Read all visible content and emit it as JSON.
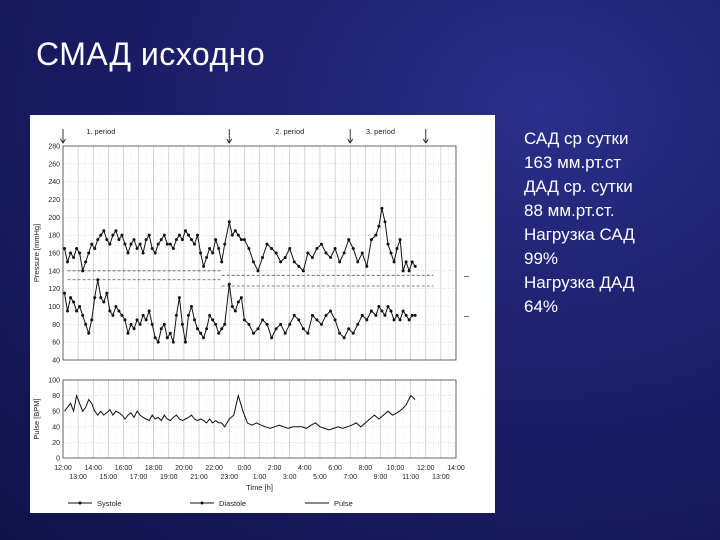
{
  "slide": {
    "title": "СМАД исходно"
  },
  "notes": [
    "САД ср сутки",
    "163 мм.рт.ст",
    "ДАД ср. сутки",
    "88 мм.рт.ст.",
    "Нагрузка САД",
    "99%",
    "Нагрузка ДАД",
    "64%"
  ],
  "chart_data": [
    {
      "type": "line",
      "ylabel": "Pressure [mmHg]",
      "ylim": [
        40,
        280
      ],
      "yticks": [
        40,
        60,
        80,
        100,
        120,
        140,
        160,
        180,
        200,
        220,
        240,
        260,
        280
      ],
      "xlim": [
        12,
        38
      ],
      "periods": [
        {
          "label": "1. period",
          "center": 14.5
        },
        {
          "label": "2. period",
          "center": 27.0
        },
        {
          "label": "3. period",
          "center": 33.0
        }
      ],
      "period_markers": [
        12.0,
        23.0,
        31.0,
        36.0
      ],
      "right_ticks": [
        {
          "y": 135,
          "label": "–"
        },
        {
          "y": 90,
          "label": "–"
        }
      ],
      "threshold_segments": [
        {
          "y": 140,
          "from": 12.3,
          "to": 22.5
        },
        {
          "y": 135,
          "from": 22.5,
          "to": 36.5
        },
        {
          "y": 130,
          "from": 12.3,
          "to": 22.5
        },
        {
          "y": 123,
          "from": 22.5,
          "to": 36.5
        }
      ],
      "series": [
        {
          "name": "Systole",
          "x": [
            12.1,
            12.3,
            12.5,
            12.7,
            12.9,
            13.1,
            13.3,
            13.5,
            13.7,
            13.9,
            14.1,
            14.3,
            14.5,
            14.7,
            14.9,
            15.1,
            15.3,
            15.5,
            15.7,
            15.9,
            16.1,
            16.3,
            16.5,
            16.7,
            16.9,
            17.1,
            17.3,
            17.5,
            17.7,
            17.9,
            18.1,
            18.3,
            18.5,
            18.7,
            18.9,
            19.1,
            19.3,
            19.5,
            19.7,
            19.9,
            20.1,
            20.3,
            20.5,
            20.7,
            20.9,
            21.1,
            21.3,
            21.5,
            21.7,
            21.9,
            22.1,
            22.3,
            22.5,
            22.7,
            23.0,
            23.2,
            23.4,
            23.6,
            23.8,
            24.0,
            24.3,
            24.6,
            24.9,
            25.2,
            25.5,
            25.8,
            26.1,
            26.4,
            26.7,
            27.0,
            27.3,
            27.6,
            27.9,
            28.2,
            28.5,
            28.8,
            29.1,
            29.4,
            29.7,
            30.0,
            30.3,
            30.6,
            30.9,
            31.2,
            31.5,
            31.8,
            32.1,
            32.4,
            32.7,
            32.9,
            33.1,
            33.3,
            33.5,
            33.7,
            33.9,
            34.1,
            34.3,
            34.5,
            34.7,
            34.9,
            35.1,
            35.3
          ],
          "y": [
            165,
            150,
            160,
            155,
            165,
            160,
            140,
            150,
            160,
            170,
            165,
            175,
            180,
            185,
            175,
            170,
            180,
            185,
            175,
            180,
            170,
            160,
            170,
            175,
            165,
            170,
            160,
            175,
            180,
            165,
            160,
            170,
            175,
            180,
            170,
            170,
            165,
            175,
            180,
            175,
            185,
            180,
            175,
            170,
            180,
            160,
            145,
            155,
            165,
            160,
            175,
            165,
            150,
            170,
            195,
            180,
            185,
            180,
            175,
            175,
            165,
            150,
            140,
            155,
            170,
            165,
            160,
            150,
            155,
            165,
            150,
            145,
            140,
            160,
            155,
            165,
            170,
            160,
            155,
            165,
            150,
            160,
            175,
            165,
            150,
            160,
            145,
            175,
            180,
            190,
            210,
            195,
            170,
            160,
            150,
            165,
            175,
            140,
            150,
            140,
            150,
            145
          ]
        },
        {
          "name": "Diastole",
          "x": [
            12.1,
            12.3,
            12.5,
            12.7,
            12.9,
            13.1,
            13.3,
            13.5,
            13.7,
            13.9,
            14.1,
            14.3,
            14.5,
            14.7,
            14.9,
            15.1,
            15.3,
            15.5,
            15.7,
            15.9,
            16.1,
            16.3,
            16.5,
            16.7,
            16.9,
            17.1,
            17.3,
            17.5,
            17.7,
            17.9,
            18.1,
            18.3,
            18.5,
            18.7,
            18.9,
            19.1,
            19.3,
            19.5,
            19.7,
            19.9,
            20.1,
            20.3,
            20.5,
            20.7,
            20.9,
            21.1,
            21.3,
            21.5,
            21.7,
            21.9,
            22.1,
            22.3,
            22.5,
            22.7,
            23.0,
            23.2,
            23.4,
            23.6,
            23.8,
            24.0,
            24.3,
            24.6,
            24.9,
            25.2,
            25.5,
            25.8,
            26.1,
            26.4,
            26.7,
            27.0,
            27.3,
            27.6,
            27.9,
            28.2,
            28.5,
            28.8,
            29.1,
            29.4,
            29.7,
            30.0,
            30.3,
            30.6,
            30.9,
            31.2,
            31.5,
            31.8,
            32.1,
            32.4,
            32.7,
            32.9,
            33.1,
            33.3,
            33.5,
            33.7,
            33.9,
            34.1,
            34.3,
            34.5,
            34.7,
            34.9,
            35.1,
            35.3
          ],
          "y": [
            115,
            95,
            110,
            105,
            95,
            100,
            90,
            80,
            70,
            85,
            110,
            130,
            110,
            105,
            115,
            95,
            90,
            100,
            95,
            90,
            85,
            70,
            80,
            75,
            85,
            80,
            90,
            85,
            95,
            80,
            65,
            60,
            75,
            80,
            65,
            70,
            60,
            90,
            110,
            80,
            60,
            90,
            100,
            85,
            75,
            70,
            65,
            75,
            90,
            85,
            80,
            70,
            75,
            80,
            125,
            100,
            95,
            105,
            110,
            85,
            80,
            70,
            75,
            85,
            80,
            65,
            75,
            80,
            70,
            80,
            90,
            85,
            75,
            70,
            90,
            85,
            80,
            90,
            95,
            85,
            70,
            65,
            75,
            70,
            80,
            90,
            85,
            95,
            90,
            100,
            95,
            90,
            100,
            95,
            85,
            90,
            85,
            95,
            90,
            85,
            90,
            90
          ]
        }
      ]
    },
    {
      "type": "line",
      "ylabel": "Pulse [BPM]",
      "xlabel": "Time [h]",
      "ylim": [
        0,
        100
      ],
      "yticks": [
        0,
        20,
        40,
        60,
        80,
        100
      ],
      "xlim": [
        12,
        38
      ],
      "xticks_top": [
        "12:00",
        "14:00",
        "16:00",
        "18:00",
        "20:00",
        "22:00",
        "0:00",
        "2:00",
        "4:00",
        "6:00",
        "8:00",
        "10:00",
        "12:00",
        "14:00"
      ],
      "xticks_bottom": [
        "13:00",
        "15:00",
        "17:00",
        "19:00",
        "21:00",
        "23:00",
        "1:00",
        "3:00",
        "5:00",
        "7:00",
        "9:00",
        "11:00",
        "13:00"
      ],
      "legend": [
        "Systole",
        "Diastole",
        "Pulse"
      ],
      "series": [
        {
          "name": "Pulse",
          "x": [
            12.1,
            12.3,
            12.5,
            12.7,
            12.9,
            13.1,
            13.3,
            13.5,
            13.7,
            13.9,
            14.1,
            14.3,
            14.5,
            14.7,
            14.9,
            15.1,
            15.3,
            15.5,
            15.7,
            15.9,
            16.1,
            16.3,
            16.5,
            16.7,
            16.9,
            17.1,
            17.3,
            17.5,
            17.7,
            17.9,
            18.1,
            18.3,
            18.5,
            18.7,
            18.9,
            19.1,
            19.3,
            19.5,
            19.7,
            19.9,
            20.1,
            20.3,
            20.5,
            20.7,
            20.9,
            21.1,
            21.3,
            21.5,
            21.7,
            21.9,
            22.1,
            22.3,
            22.5,
            22.7,
            23.0,
            23.3,
            23.6,
            23.9,
            24.2,
            24.5,
            24.8,
            25.1,
            25.4,
            25.7,
            26.0,
            26.3,
            26.6,
            26.9,
            27.2,
            27.5,
            27.8,
            28.1,
            28.4,
            28.7,
            29.0,
            29.3,
            29.6,
            29.9,
            30.2,
            30.5,
            30.8,
            31.1,
            31.4,
            31.7,
            32.0,
            32.3,
            32.6,
            32.9,
            33.2,
            33.5,
            33.8,
            34.1,
            34.4,
            34.7,
            35.0,
            35.3
          ],
          "y": [
            60,
            65,
            70,
            60,
            80,
            70,
            60,
            65,
            75,
            70,
            60,
            55,
            60,
            55,
            58,
            62,
            55,
            60,
            58,
            55,
            50,
            55,
            58,
            52,
            60,
            55,
            52,
            50,
            48,
            55,
            50,
            52,
            48,
            55,
            50,
            48,
            52,
            55,
            50,
            48,
            50,
            52,
            55,
            50,
            48,
            50,
            48,
            45,
            50,
            45,
            48,
            45,
            45,
            40,
            50,
            55,
            80,
            60,
            45,
            42,
            45,
            42,
            40,
            38,
            40,
            42,
            40,
            38,
            40,
            40,
            40,
            38,
            42,
            45,
            40,
            38,
            36,
            38,
            40,
            38,
            40,
            42,
            45,
            40,
            45,
            50,
            55,
            50,
            55,
            60,
            55,
            58,
            62,
            68,
            80,
            75
          ]
        }
      ]
    }
  ]
}
